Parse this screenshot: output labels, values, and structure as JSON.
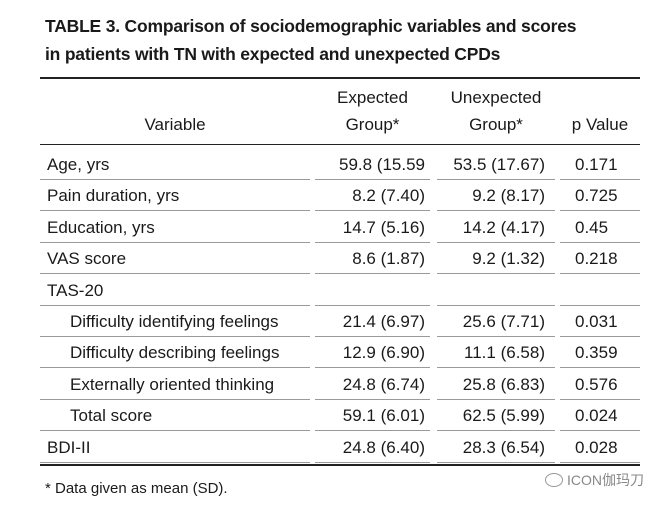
{
  "title": [
    "TABLE 3. Comparison of sociodemographic variables and scores",
    "in patients with TN with expected and unexpected CPDs"
  ],
  "table": {
    "header": {
      "variable": "Variable",
      "expected": [
        "Expected",
        "Group*"
      ],
      "unexpected": [
        "Unexpected",
        "Group*"
      ],
      "p": "p Value"
    },
    "rows": [
      {
        "cells": [
          "Age, yrs",
          "59.8 (15.59",
          "53.5 (17.67)",
          "0.171"
        ]
      },
      {
        "cells": [
          "Pain duration, yrs",
          "8.2 (7.40)",
          "9.2 (8.17)",
          "0.725"
        ]
      },
      {
        "cells": [
          "Education, yrs",
          "14.7 (5.16)",
          "14.2 (4.17)",
          "0.45"
        ]
      },
      {
        "cells": [
          "VAS score",
          "8.6 (1.87)",
          "9.2 (1.32)",
          "0.218"
        ]
      },
      {
        "cells": [
          "TAS-20"
        ],
        "items": [
          [
            "Difficulty identifying feelings",
            "21.4 (6.97)",
            "25.6 (7.71)",
            "0.031"
          ],
          [
            "Difficulty describing feelings",
            "12.9 (6.90)",
            "11.1 (6.58)",
            "0.359"
          ],
          [
            "Externally oriented thinking",
            "24.8 (6.74)",
            "25.8 (6.83)",
            "0.576"
          ],
          [
            "Total score",
            "59.1 (6.01)",
            "62.5 (5.99)",
            "0.024"
          ]
        ]
      },
      {
        "cells": [
          "BDI-II",
          "24.8 (6.40)",
          "28.3 (6.54)",
          "0.028"
        ]
      }
    ]
  },
  "footnote": "* Data given as mean (SD).",
  "watermark": "ICON伽玛刀"
}
